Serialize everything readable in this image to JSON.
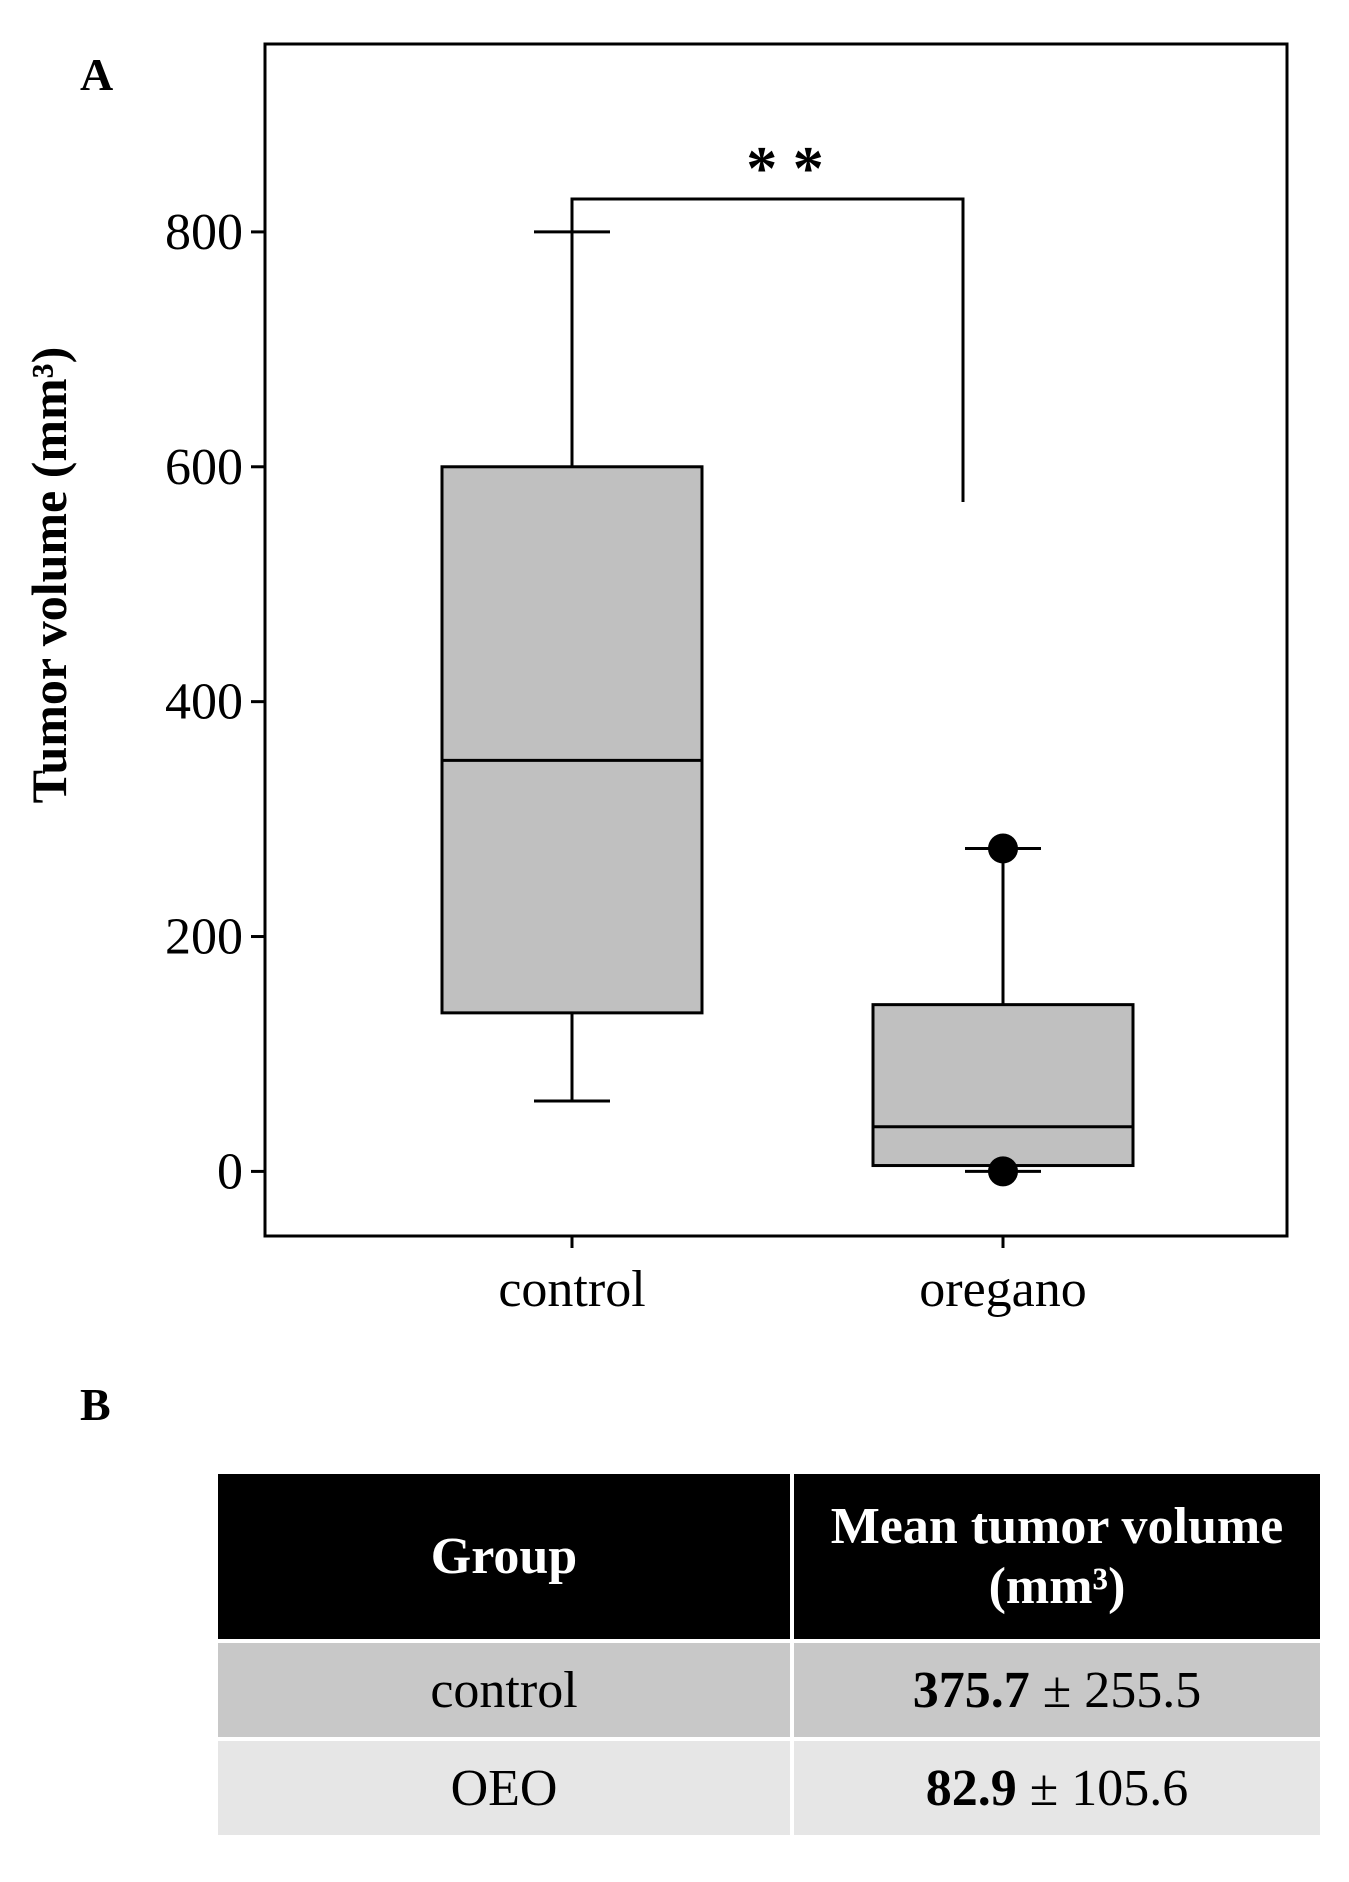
{
  "panel_a_label": "A",
  "panel_b_label": "B",
  "chart_data": {
    "type": "box",
    "title": "",
    "xlabel": "",
    "ylabel": "Tumor  volume (mm³)",
    "ylim": [
      -55,
      960
    ],
    "yticks": [
      0,
      200,
      400,
      600,
      800
    ],
    "categories": [
      "control",
      "oregano"
    ],
    "boxes": [
      {
        "name": "control",
        "whisker_low": 60,
        "q1": 135,
        "median": 350,
        "q3": 600,
        "whisker_high": 800,
        "outliers": []
      },
      {
        "name": "oregano",
        "whisker_low": 0,
        "q1": 5,
        "median": 38,
        "q3": 142,
        "whisker_high": 275,
        "outliers": [
          275,
          0
        ]
      }
    ],
    "significance": {
      "label": "* *",
      "from": "control",
      "to": "oregano",
      "y": 828,
      "right_drop_to": 570
    }
  },
  "table": {
    "headers": [
      "Group",
      "Mean tumor volume (mm³)"
    ],
    "rows": [
      {
        "group": "control",
        "mean": "375.7",
        "sd": "± 255.5"
      },
      {
        "group": "OEO",
        "mean": "82.9",
        "sd": "± 105.6"
      }
    ]
  }
}
